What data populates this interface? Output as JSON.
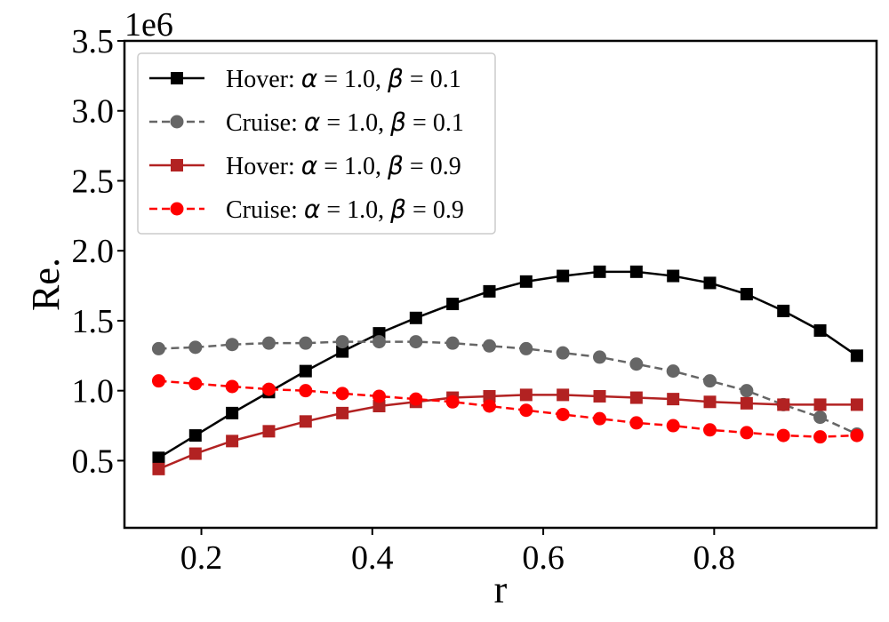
{
  "chart_data": {
    "type": "line",
    "xlabel": "r",
    "ylabel": "Re.",
    "y_offset_label": "1e6",
    "xlim": [
      0.11,
      0.99
    ],
    "ylim": [
      0.02,
      3.5
    ],
    "xticks": [
      0.2,
      0.4,
      0.6,
      0.8
    ],
    "xtick_labels": [
      "0.2",
      "0.4",
      "0.6",
      "0.8"
    ],
    "yticks": [
      0.5,
      1.0,
      1.5,
      2.0,
      2.5,
      3.0,
      3.5
    ],
    "ytick_labels": [
      "0.5",
      "1.0",
      "1.5",
      "2.0",
      "2.5",
      "3.0",
      "3.5"
    ],
    "grid": false,
    "legend_position": "top-left",
    "x": [
      0.15,
      0.193,
      0.236,
      0.279,
      0.322,
      0.365,
      0.408,
      0.451,
      0.494,
      0.537,
      0.58,
      0.623,
      0.666,
      0.709,
      0.752,
      0.795,
      0.838,
      0.881,
      0.924,
      0.967
    ],
    "series": [
      {
        "name": "Hover: α = 1.0, β = 0.1",
        "legend": {
          "prefix": "Hover: ",
          "alpha": "α",
          "mid": " = 1.0, ",
          "beta": "β",
          "suffix": " = 0.1"
        },
        "color": "#000000",
        "dash": "solid",
        "marker": "square",
        "values": [
          0.52,
          0.68,
          0.84,
          0.99,
          1.14,
          1.28,
          1.41,
          1.52,
          1.62,
          1.71,
          1.78,
          1.82,
          1.85,
          1.85,
          1.82,
          1.77,
          1.69,
          1.57,
          1.43,
          1.25
        ]
      },
      {
        "name": "Cruise: α = 1.0, β = 0.1",
        "legend": {
          "prefix": "Cruise: ",
          "alpha": "α",
          "mid": " = 1.0, ",
          "beta": "β",
          "suffix": " = 0.1"
        },
        "color": "#666666",
        "dash": "dashed",
        "marker": "circle",
        "values": [
          1.3,
          1.31,
          1.33,
          1.34,
          1.34,
          1.35,
          1.35,
          1.35,
          1.34,
          1.32,
          1.3,
          1.27,
          1.24,
          1.19,
          1.14,
          1.07,
          1.0,
          0.9,
          0.81,
          0.69
        ]
      },
      {
        "name": "Hover: α = 1.0, β = 0.9",
        "legend": {
          "prefix": "Hover: ",
          "alpha": "α",
          "mid": " = 1.0, ",
          "beta": "β",
          "suffix": " = 0.9"
        },
        "color": "#b22222",
        "dash": "solid",
        "marker": "square",
        "values": [
          0.44,
          0.55,
          0.64,
          0.71,
          0.78,
          0.84,
          0.89,
          0.92,
          0.95,
          0.96,
          0.97,
          0.97,
          0.96,
          0.95,
          0.94,
          0.92,
          0.91,
          0.9,
          0.9,
          0.9
        ]
      },
      {
        "name": "Cruise: α = 1.0, β = 0.9",
        "legend": {
          "prefix": "Cruise: ",
          "alpha": "α",
          "mid": " = 1.0, ",
          "beta": "β",
          "suffix": " = 0.9"
        },
        "color": "#ff0000",
        "dash": "dashed",
        "marker": "circle",
        "values": [
          1.07,
          1.05,
          1.03,
          1.01,
          1.0,
          0.98,
          0.96,
          0.94,
          0.92,
          0.89,
          0.86,
          0.83,
          0.8,
          0.77,
          0.75,
          0.72,
          0.7,
          0.68,
          0.67,
          0.68
        ]
      }
    ]
  }
}
